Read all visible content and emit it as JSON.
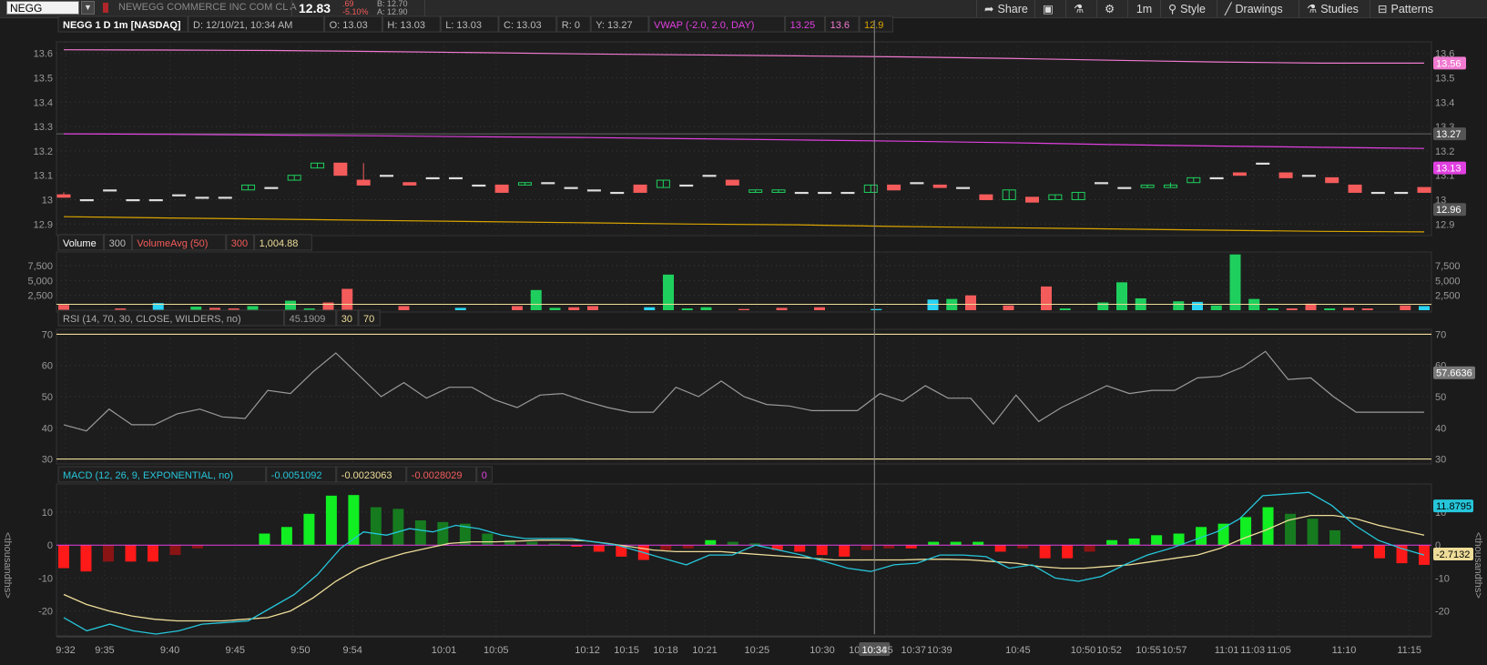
{
  "toolbar": {
    "symbol": "NEGG",
    "company": "NEWEGG COMMERCE INC COM CL A",
    "last": "12.83",
    "change": ".69",
    "change_pct": "-5.10%",
    "bid": "B: 12.70",
    "ask": "A: 12.90",
    "share": "Share",
    "timeframe": "1m",
    "style": "Style",
    "drawings": "Drawings",
    "studies": "Studies",
    "patterns": "Patterns"
  },
  "colors": {
    "up": "#1fcf5e",
    "down": "#f45b5b",
    "vwap": "#e040e0",
    "upper_band": "#f07ad0",
    "lower_band": "#d9a400",
    "macd_line": "#26c6da",
    "signal_line": "#eedd99",
    "rsi_line": "#9a9a9a",
    "grid": "#3a3a3a"
  },
  "chart_data": [
    {
      "type": "candlestick",
      "name": "price",
      "header": {
        "title": "NEGG 1 D 1m [NASDAQ]",
        "date": "D: 12/10/21, 10:34 AM",
        "open": "O: 13.03",
        "high": "H: 13.03",
        "low": "L: 13.03",
        "close": "C: 13.03",
        "range": "R: 0",
        "y": "Y: 13.27",
        "vwap_label": "VWAP (-2.0, 2.0, DAY)",
        "vwap_value": "13.25",
        "upper_value": "13.6",
        "lower_value": "12.9"
      },
      "ylim": [
        12.86,
        13.64
      ],
      "yticks": [
        12.9,
        13,
        13.1,
        13.2,
        13.3,
        13.4,
        13.5,
        13.6
      ],
      "ytick_labels": [
        "12.9",
        "13",
        "13.1",
        "13.2",
        "13.3",
        "13.4",
        "13.5",
        "13.6"
      ],
      "price_tags": [
        {
          "label": "13.56",
          "value": 13.56,
          "color": "#f07ad0"
        },
        {
          "label": "13.27",
          "value": 13.27,
          "color": "#555555"
        },
        {
          "label": "13.13",
          "value": 13.13,
          "color": "#e040e0"
        },
        {
          "label": "12.96",
          "value": 12.96,
          "color": "#555555"
        }
      ],
      "prev_close": 13.27,
      "ohlc": [
        [
          13.02,
          13.03,
          13.01,
          13.01
        ],
        [
          13.0,
          13.0,
          13.0,
          13.0
        ],
        [
          13.04,
          13.04,
          13.04,
          13.04
        ],
        [
          13.0,
          13.0,
          13.0,
          13.0
        ],
        [
          13.0,
          13.0,
          13.0,
          13.0
        ],
        [
          13.02,
          13.02,
          13.02,
          13.02
        ],
        [
          13.01,
          13.01,
          13.01,
          13.01
        ],
        [
          13.01,
          13.01,
          13.01,
          13.01
        ],
        [
          13.04,
          13.06,
          13.04,
          13.06
        ],
        [
          13.05,
          13.05,
          13.05,
          13.05
        ],
        [
          13.08,
          13.1,
          13.08,
          13.1
        ],
        [
          13.13,
          13.15,
          13.13,
          13.15
        ],
        [
          13.15,
          13.15,
          13.1,
          13.1
        ],
        [
          13.08,
          13.15,
          13.06,
          13.06
        ],
        [
          13.1,
          13.1,
          13.1,
          13.1
        ],
        [
          13.07,
          13.07,
          13.06,
          13.06
        ],
        [
          13.09,
          13.09,
          13.09,
          13.09
        ],
        [
          13.09,
          13.09,
          13.09,
          13.09
        ],
        [
          13.06,
          13.06,
          13.06,
          13.06
        ],
        [
          13.06,
          13.06,
          13.03,
          13.03
        ],
        [
          13.06,
          13.07,
          13.06,
          13.07
        ],
        [
          13.07,
          13.07,
          13.07,
          13.07
        ],
        [
          13.05,
          13.05,
          13.05,
          13.05
        ],
        [
          13.04,
          13.04,
          13.04,
          13.04
        ],
        [
          13.03,
          13.03,
          13.03,
          13.03
        ],
        [
          13.06,
          13.06,
          13.03,
          13.03
        ],
        [
          13.05,
          13.08,
          13.05,
          13.08
        ],
        [
          13.06,
          13.06,
          13.06,
          13.06
        ],
        [
          13.1,
          13.1,
          13.1,
          13.1
        ],
        [
          13.08,
          13.08,
          13.06,
          13.06
        ],
        [
          13.03,
          13.04,
          13.03,
          13.04
        ],
        [
          13.03,
          13.04,
          13.03,
          13.04
        ],
        [
          13.03,
          13.03,
          13.03,
          13.03
        ],
        [
          13.03,
          13.03,
          13.03,
          13.03
        ],
        [
          13.03,
          13.03,
          13.03,
          13.03
        ],
        [
          13.03,
          13.06,
          13.03,
          13.06
        ],
        [
          13.06,
          13.06,
          13.04,
          13.04
        ],
        [
          13.07,
          13.07,
          13.07,
          13.07
        ],
        [
          13.06,
          13.06,
          13.05,
          13.05
        ],
        [
          13.05,
          13.05,
          13.05,
          13.05
        ],
        [
          13.02,
          13.02,
          13.0,
          13.0
        ],
        [
          13.0,
          13.04,
          13.0,
          13.04
        ],
        [
          13.01,
          13.01,
          12.99,
          12.99
        ],
        [
          13.0,
          13.02,
          13.0,
          13.02
        ],
        [
          13.0,
          13.03,
          13.0,
          13.03
        ],
        [
          13.07,
          13.07,
          13.07,
          13.07
        ],
        [
          13.05,
          13.05,
          13.05,
          13.05
        ],
        [
          13.05,
          13.06,
          13.05,
          13.06
        ],
        [
          13.05,
          13.07,
          13.05,
          13.06
        ],
        [
          13.07,
          13.09,
          13.07,
          13.09
        ],
        [
          13.09,
          13.09,
          13.09,
          13.09
        ],
        [
          13.11,
          13.11,
          13.1,
          13.1
        ],
        [
          13.15,
          13.15,
          13.15,
          13.15
        ],
        [
          13.11,
          13.11,
          13.09,
          13.09
        ],
        [
          13.1,
          13.1,
          13.1,
          13.1
        ],
        [
          13.09,
          13.09,
          13.07,
          13.07
        ],
        [
          13.06,
          13.06,
          13.03,
          13.03
        ],
        [
          13.03,
          13.03,
          13.03,
          13.03
        ],
        [
          13.03,
          13.03,
          13.03,
          13.03
        ],
        [
          13.05,
          13.05,
          13.03,
          13.03
        ]
      ],
      "vwap": [
        13.27,
        13.268,
        13.265,
        13.262,
        13.258,
        13.255,
        13.25,
        13.245,
        13.24,
        13.234,
        13.226,
        13.22,
        13.215,
        13.21
      ],
      "upper_band": [
        13.615,
        13.614,
        13.612,
        13.608,
        13.603,
        13.598,
        13.594,
        13.59,
        13.586,
        13.58,
        13.572,
        13.565,
        13.56,
        13.56
      ],
      "lower_band": [
        12.93,
        12.925,
        12.92,
        12.915,
        12.91,
        12.905,
        12.9,
        12.897,
        12.89,
        12.885,
        12.88,
        12.875,
        12.87,
        12.868
      ]
    },
    {
      "type": "bar",
      "name": "volume",
      "header": {
        "label": "Volume",
        "value": "300",
        "avg_label": "VolumeAvg (50)",
        "avg_value": "300",
        "avg_level": "1,004.88"
      },
      "ylim": [
        0,
        9500
      ],
      "yticks": [
        2500,
        5000,
        7500
      ],
      "ytick_labels": [
        "2,500",
        "5,000",
        "7,500"
      ],
      "values": [
        900,
        0,
        0,
        300,
        0,
        1200,
        0,
        600,
        400,
        300,
        700,
        0,
        1600,
        300,
        1300,
        3600,
        0,
        0,
        700,
        0,
        0,
        400,
        0,
        0,
        700,
        3400,
        400,
        500,
        700,
        0,
        0,
        500,
        6000,
        300,
        500,
        0,
        200,
        0,
        400,
        0,
        500,
        0,
        0,
        200,
        0,
        0,
        1800,
        1900,
        2500,
        0,
        800,
        0,
        4000,
        300,
        0,
        1300,
        4700,
        2000,
        0,
        1500,
        1400,
        800,
        9400,
        1900,
        300,
        300,
        1100,
        300,
        400,
        300,
        0,
        800,
        700
      ],
      "colors": [
        "down",
        "",
        "",
        "down",
        "",
        "cyan",
        "",
        "up",
        "down",
        "down",
        "up",
        "",
        "up",
        "up",
        "down",
        "down",
        "",
        "",
        "down",
        "",
        "",
        "cyan",
        "",
        "",
        "down",
        "up",
        "up",
        "down",
        "down",
        "",
        "",
        "cyan",
        "up",
        "up",
        "up",
        "",
        "down",
        "",
        "down",
        "",
        "down",
        "",
        "",
        "cyan",
        "",
        "",
        "cyan",
        "up",
        "down",
        "",
        "down",
        "",
        "down",
        "up",
        "",
        "up",
        "up",
        "up",
        "",
        "up",
        "cyan",
        "up",
        "up",
        "up",
        "up",
        "down",
        "down",
        "up",
        "down",
        "down",
        "",
        "down",
        "cyan"
      ]
    },
    {
      "type": "line",
      "name": "rsi",
      "header": {
        "label": "RSI (14, 70, 30, CLOSE, WILDERS, no)",
        "value": "45.1909",
        "low": "30",
        "high": "70"
      },
      "ylim": [
        29,
        71
      ],
      "yticks": [
        30,
        40,
        50,
        60,
        70
      ],
      "ytick_labels": [
        "30",
        "40",
        "50",
        "60",
        "70"
      ],
      "tag": {
        "label": "57.6636",
        "value": 57.6636
      },
      "values": [
        41,
        39,
        46,
        41,
        41,
        44.5,
        46,
        43.5,
        43,
        52,
        51,
        58,
        64,
        57,
        50,
        54.5,
        49.5,
        53,
        53,
        49,
        46.5,
        50.5,
        51,
        48.5,
        46.5,
        45,
        45,
        53,
        50,
        55,
        50,
        47.5,
        47,
        45.5,
        45.5,
        45.5,
        51,
        48.5,
        53.5,
        49.5,
        49.5,
        41.2,
        50.5,
        42,
        46.5,
        50,
        53.5,
        51,
        52,
        52,
        56,
        56.5,
        59.5,
        64.5,
        55.5,
        56,
        50,
        45,
        45,
        45,
        45
      ]
    },
    {
      "type": "bar",
      "name": "macd",
      "header": {
        "label": "MACD (12, 26, 9, EXPONENTIAL, no)",
        "macd": "-0.0051092",
        "signal": "-0.0023063",
        "diff": "-0.0028029",
        "zero": "0"
      },
      "unit_label": "<thousandths>",
      "ylim": [
        -27,
        18
      ],
      "yticks": [
        -20,
        -10,
        0,
        10
      ],
      "ytick_labels": [
        "-20",
        "-10",
        "0",
        "10"
      ],
      "tags": [
        {
          "label": "11.8795",
          "value": 11.8795,
          "color": "#26c6da"
        },
        {
          "label": "-2.7132",
          "value": -2.7132,
          "color": "#eedd99"
        }
      ],
      "histogram": [
        -7,
        -8,
        -5,
        -5,
        -5,
        -3,
        -1,
        0,
        0,
        3.5,
        5.5,
        9.5,
        15,
        15.2,
        11.5,
        11,
        7.5,
        7,
        6.5,
        3.5,
        1.5,
        1,
        0.5,
        -0.5,
        -2,
        -3.5,
        -4.5,
        -1.5,
        -1,
        1.5,
        1,
        0.5,
        -1.5,
        -2,
        -3,
        -3.5,
        -1.5,
        -1,
        -1,
        1,
        1,
        1,
        -2,
        -1,
        -4,
        -4,
        -2,
        1.5,
        2,
        3,
        3.5,
        5.5,
        6.5,
        8.5,
        11.5,
        9.5,
        8,
        4.5,
        -1,
        -4,
        -5.5,
        -6
      ],
      "macd_line": [
        -22,
        -26,
        -24,
        -26,
        -27,
        -26,
        -24,
        -23.5,
        -23,
        -19,
        -15,
        -9,
        -1,
        4,
        3,
        5,
        4,
        6,
        5,
        3,
        2,
        2,
        2,
        1,
        0,
        -2,
        -4,
        -6,
        -3,
        -3,
        0,
        -1.5,
        -3,
        -5,
        -7,
        -8,
        -6,
        -5.5,
        -3,
        -3,
        -3.5,
        -7,
        -6,
        -10,
        -11,
        -9.5,
        -6,
        -3,
        -1,
        1.5,
        4,
        8,
        15,
        15.5,
        16,
        12,
        6,
        1.5,
        -1,
        -3
      ],
      "signal_line": [
        -15,
        -18,
        -20,
        -21.5,
        -22.5,
        -23,
        -23,
        -23,
        -22.5,
        -22,
        -20,
        -16,
        -11,
        -7,
        -4.5,
        -2.5,
        -1,
        0.5,
        1,
        1,
        1.2,
        1.5,
        1.5,
        1.3,
        0.5,
        -0.5,
        -1.5,
        -2,
        -2,
        -2,
        -2.5,
        -3,
        -3.5,
        -4,
        -4.5,
        -4.5,
        -4.5,
        -4.5,
        -4.3,
        -4.3,
        -4.5,
        -5,
        -5.5,
        -6.5,
        -7,
        -7,
        -6.5,
        -6,
        -5,
        -4,
        -3,
        -1,
        2,
        4.5,
        7.5,
        9,
        9,
        8,
        6,
        4.5,
        3
      ]
    }
  ],
  "x_axis": {
    "labels": [
      "9:32",
      "9:35",
      "9:40",
      "9:45",
      "9:50",
      "9:54",
      "10:01",
      "10:05",
      "10:12",
      "10:15",
      "10:18",
      "10:21",
      "10:25",
      "10:30",
      "10:33",
      "10:34",
      "35",
      "10:37",
      "10:39",
      "10:45",
      "10:50",
      "10:52",
      "10:55",
      "10:57",
      "11:01",
      "11:03",
      "11:05",
      "11:10",
      "11:15"
    ],
    "positions": [
      0,
      3,
      8,
      13,
      18,
      22,
      29,
      33,
      40,
      43,
      46,
      49,
      53,
      58,
      61,
      62,
      63,
      65,
      67,
      73,
      78,
      80,
      83,
      85,
      89,
      91,
      93,
      98,
      103
    ],
    "span": 104,
    "crosshair": "10:34"
  }
}
